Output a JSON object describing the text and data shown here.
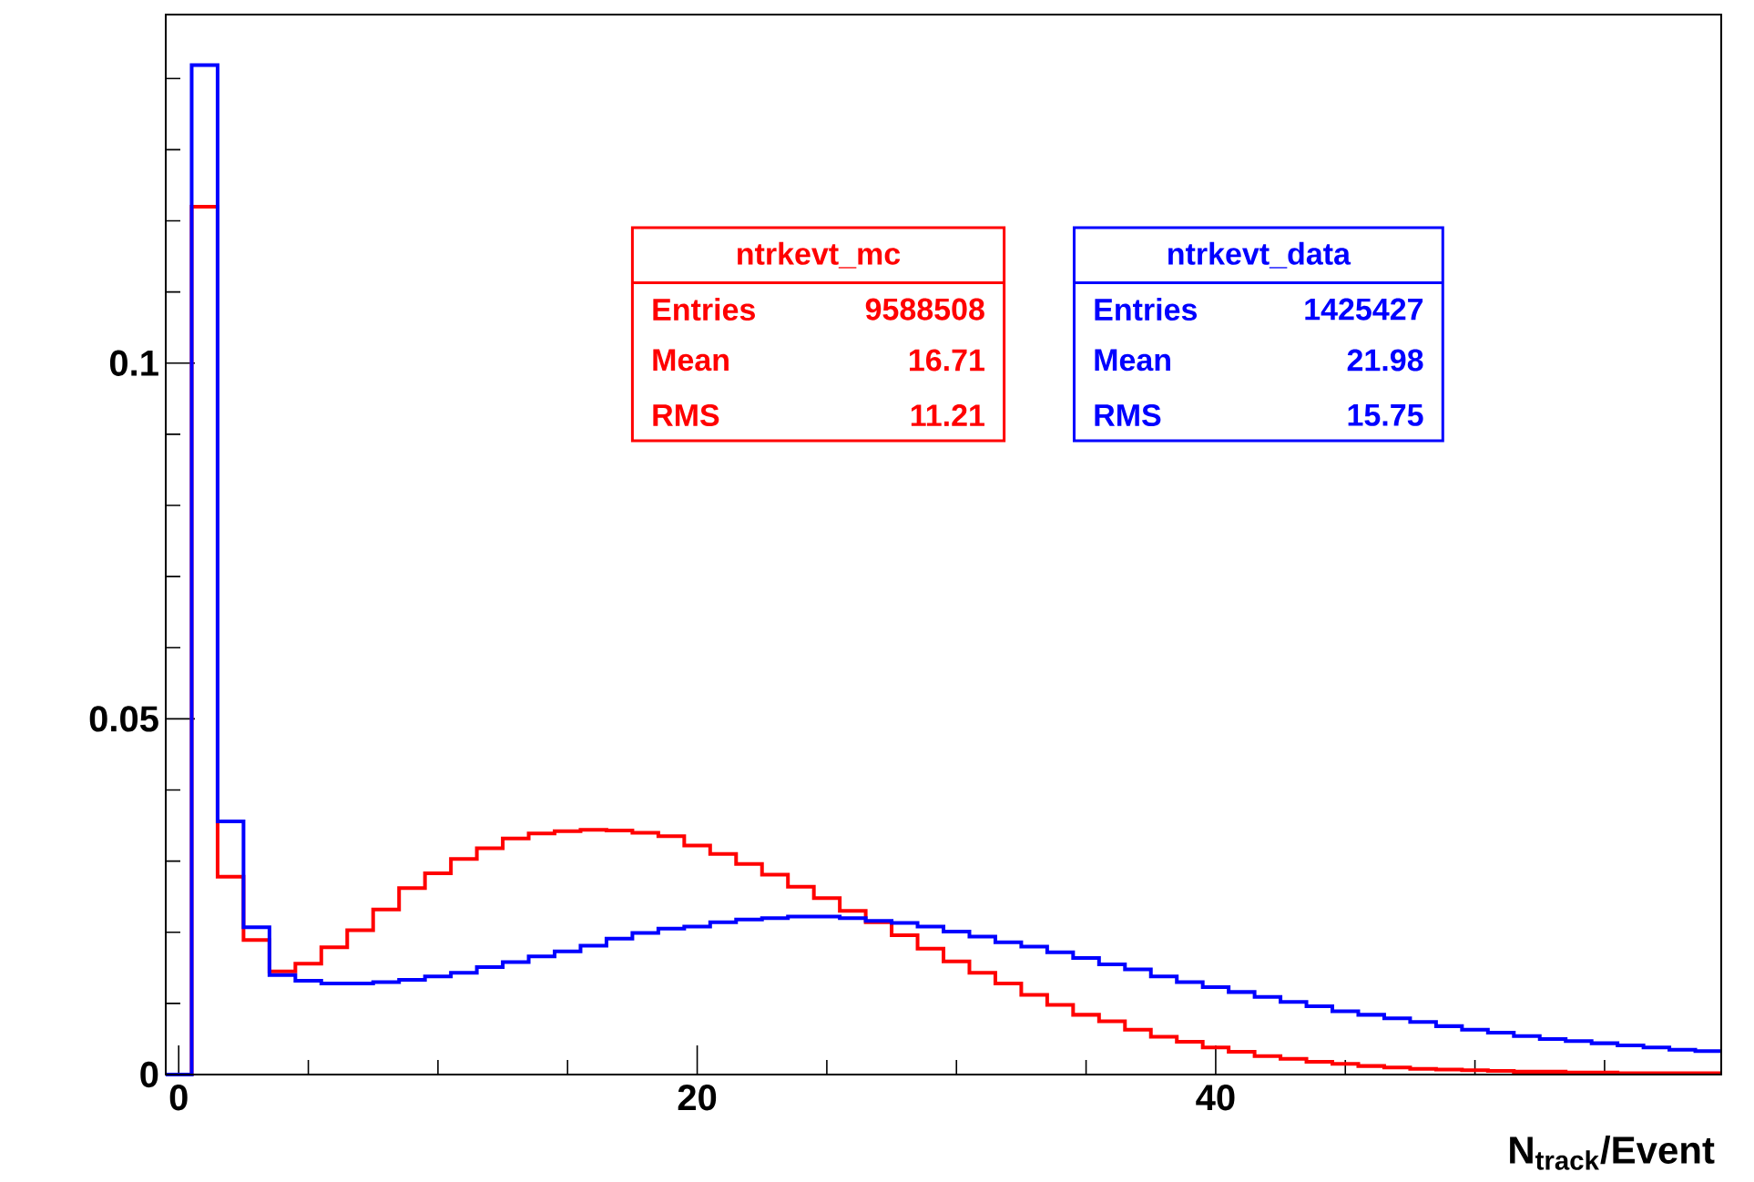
{
  "chart_data": {
    "type": "histogram",
    "xlabel": "N$_{track}$/Event",
    "bins": [
      -0.5,
      0.5,
      1.5,
      2.5,
      3.5,
      4.5,
      5.5,
      6.5,
      7.5,
      8.5,
      9.5,
      10.5,
      11.5,
      12.5,
      13.5,
      14.5,
      15.5,
      16.5,
      17.5,
      18.5,
      19.5,
      20.5,
      21.5,
      22.5,
      23.5,
      24.5,
      25.5,
      26.5,
      27.5,
      28.5,
      29.5,
      30.5,
      31.5,
      32.5,
      33.5,
      34.5,
      35.5,
      36.5,
      37.5,
      38.5,
      39.5,
      40.5,
      41.5,
      42.5,
      43.5,
      44.5,
      45.5,
      46.5,
      47.5,
      48.5,
      49.5,
      50.5,
      51.5,
      52.5,
      53.5,
      54.5,
      55.5,
      56.5,
      57.5,
      58.5,
      59.5
    ],
    "series": [
      {
        "name": "ntrkevt_mc",
        "color": "#ff0000",
        "values": [
          0,
          0.122,
          0.0278,
          0.0189,
          0.0145,
          0.0156,
          0.0179,
          0.0203,
          0.0232,
          0.0262,
          0.0283,
          0.0303,
          0.0318,
          0.0332,
          0.0339,
          0.0342,
          0.0344,
          0.0343,
          0.034,
          0.0335,
          0.0322,
          0.031,
          0.0296,
          0.0281,
          0.0264,
          0.0248,
          0.023,
          0.0214,
          0.0196,
          0.0177,
          0.0159,
          0.0143,
          0.0128,
          0.0112,
          0.0098,
          0.0084,
          0.0075,
          0.0063,
          0.0053,
          0.0046,
          0.0038,
          0.0032,
          0.0026,
          0.0022,
          0.0018,
          0.0015,
          0.0012,
          0.001,
          0.0008,
          0.0007,
          0.0006,
          0.0005,
          0.0004,
          0.0004,
          0.0003,
          0.0003,
          0.0002,
          0.0002,
          0.0002,
          0.0002
        ]
      },
      {
        "name": "ntrkevt_data",
        "color": "#0000ff",
        "values": [
          0,
          0.1419,
          0.0356,
          0.0207,
          0.014,
          0.0132,
          0.0128,
          0.0128,
          0.013,
          0.0133,
          0.0138,
          0.0143,
          0.0151,
          0.0158,
          0.0166,
          0.0173,
          0.0181,
          0.0191,
          0.0199,
          0.0205,
          0.0208,
          0.0214,
          0.0218,
          0.022,
          0.0222,
          0.0222,
          0.022,
          0.0216,
          0.0213,
          0.0208,
          0.0201,
          0.0194,
          0.0186,
          0.018,
          0.0172,
          0.0164,
          0.0155,
          0.0148,
          0.0138,
          0.013,
          0.0123,
          0.0116,
          0.0109,
          0.0102,
          0.0096,
          0.0089,
          0.0084,
          0.0079,
          0.0074,
          0.0068,
          0.0063,
          0.0059,
          0.0054,
          0.005,
          0.0047,
          0.0044,
          0.0041,
          0.0038,
          0.0035,
          0.0033
        ]
      }
    ],
    "annotations": [
      "Entries",
      "9588508",
      "Mean",
      "16.71",
      "RMS",
      "11.21",
      "Entries",
      "1425427",
      "Mean",
      "21.98",
      "RMS",
      "15.75"
    ],
    "xlim": [
      -0.5,
      59.5
    ],
    "ylim": [
      0,
      0.149
    ],
    "xticks": [
      0,
      {
        "value": 5,
        "label": null
      },
      {
        "value": 10,
        "label": null
      },
      {
        "value": 15,
        "label": null
      },
      20,
      {
        "value": 25,
        "label": null
      },
      {
        "value": 30,
        "label": null
      },
      {
        "value": 35,
        "label": null
      },
      40,
      {
        "value": 45,
        "label": null
      },
      {
        "value": 50,
        "label": null
      },
      {
        "value": 55,
        "label": null
      }
    ],
    "yticks": [
      0,
      {
        "value": 0.01,
        "label": null
      },
      {
        "value": 0.02,
        "label": null
      },
      {
        "value": 0.03,
        "label": null
      },
      {
        "value": 0.04,
        "label": null
      },
      0.05,
      {
        "value": 0.06,
        "label": null
      },
      {
        "value": 0.07,
        "label": null
      },
      {
        "value": 0.08,
        "label": null
      },
      {
        "value": 0.09,
        "label": null
      },
      0.1,
      {
        "value": 0.11,
        "label": null
      },
      {
        "value": 0.12,
        "label": null
      },
      {
        "value": 0.13,
        "label": null
      },
      {
        "value": 0.14,
        "label": null
      }
    ]
  }
}
